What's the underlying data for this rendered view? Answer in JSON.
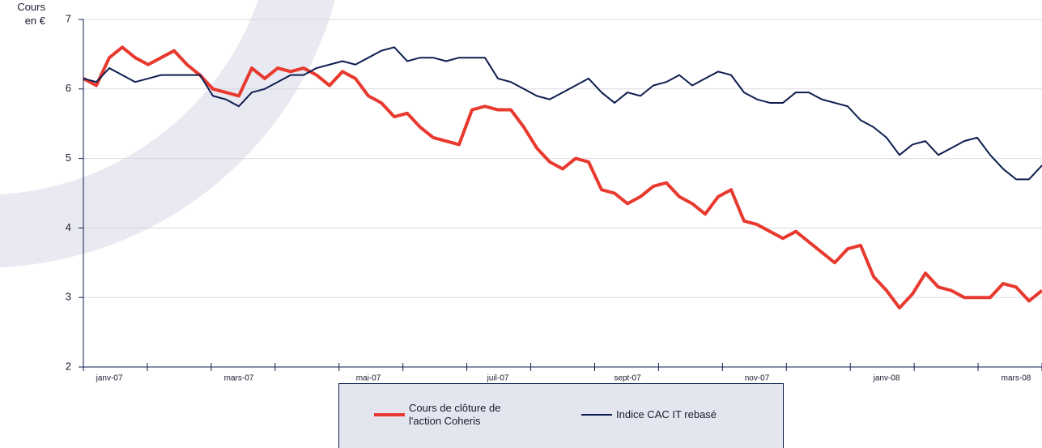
{
  "chart_data": {
    "type": "line",
    "y_label": "Cours en €",
    "categories": [
      null,
      null,
      "janv-07",
      null,
      null,
      null,
      null,
      null,
      null,
      null,
      null,
      null,
      "mars-07",
      null,
      null,
      null,
      null,
      null,
      null,
      null,
      null,
      null,
      "mai-07",
      null,
      null,
      null,
      null,
      null,
      null,
      null,
      null,
      null,
      "juil-07",
      null,
      null,
      null,
      null,
      null,
      null,
      null,
      null,
      null,
      "sept-07",
      null,
      null,
      null,
      null,
      null,
      null,
      null,
      null,
      null,
      "nov-07",
      null,
      null,
      null,
      null,
      null,
      null,
      null,
      null,
      null,
      "janv-08",
      null,
      null,
      null,
      null,
      null,
      null,
      null,
      null,
      null,
      "mars-08",
      null,
      null
    ],
    "series": [
      {
        "name": "Cours de clôture de l'action Coheris",
        "color": "#e8392f",
        "values": [
          6.15,
          6.05,
          6.45,
          6.6,
          6.45,
          6.35,
          6.45,
          6.55,
          6.35,
          6.2,
          6.0,
          5.95,
          5.9,
          6.3,
          6.15,
          6.3,
          6.25,
          6.3,
          6.2,
          6.05,
          6.25,
          6.15,
          5.9,
          5.8,
          5.6,
          5.65,
          5.45,
          5.3,
          5.25,
          5.2,
          5.7,
          5.75,
          5.7,
          5.7,
          5.45,
          5.15,
          4.95,
          4.85,
          5.0,
          4.95,
          4.55,
          4.5,
          4.35,
          4.45,
          4.6,
          4.65,
          4.45,
          4.35,
          4.2,
          4.45,
          4.55,
          4.1,
          4.05,
          3.95,
          3.85,
          3.95,
          3.8,
          3.65,
          3.5,
          3.7,
          3.75,
          3.3,
          3.1,
          2.85,
          3.05,
          3.35,
          3.15,
          3.1,
          3.0,
          3.0,
          3.0,
          3.2,
          3.15,
          2.95,
          3.1
        ]
      },
      {
        "name": "Indice CAC IT rebasé",
        "color": "#0d1d4f",
        "values": [
          6.15,
          6.1,
          6.3,
          6.2,
          6.1,
          6.15,
          6.2,
          6.2,
          6.2,
          6.2,
          5.9,
          5.85,
          5.75,
          5.95,
          6.0,
          6.1,
          6.2,
          6.2,
          6.3,
          6.35,
          6.4,
          6.35,
          6.45,
          6.55,
          6.6,
          6.4,
          6.45,
          6.45,
          6.4,
          6.45,
          6.45,
          6.45,
          6.15,
          6.1,
          6.0,
          5.9,
          5.85,
          5.95,
          6.05,
          6.15,
          5.95,
          5.8,
          5.95,
          5.9,
          6.05,
          6.1,
          6.2,
          6.05,
          6.15,
          6.25,
          6.2,
          5.95,
          5.85,
          5.8,
          5.8,
          5.95,
          5.95,
          5.85,
          5.8,
          5.75,
          5.55,
          5.45,
          5.3,
          5.05,
          5.2,
          5.25,
          5.05,
          5.15,
          5.25,
          5.3,
          5.05,
          4.85,
          4.7,
          4.7,
          4.9
        ]
      }
    ],
    "ylim": [
      2,
      7
    ],
    "yticks": [
      2,
      3,
      4,
      5,
      6,
      7
    ],
    "grid": true
  }
}
